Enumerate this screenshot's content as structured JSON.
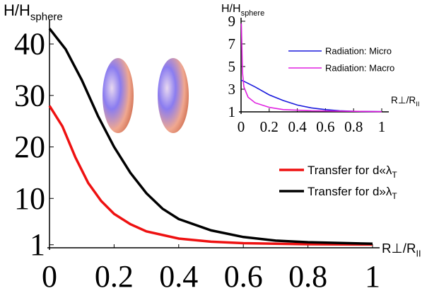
{
  "chart_data": [
    {
      "type": "line",
      "y_label": {
        "main": "H/H",
        "sub": "sphere"
      },
      "x_label": {
        "main": "R⊥/R",
        "sub": "II"
      },
      "xlim": [
        0,
        1
      ],
      "xticks": [
        0,
        0.2,
        0.4,
        0.6,
        0.8,
        1
      ],
      "ylim": [
        0,
        44
      ],
      "yticks": [
        1,
        10,
        20,
        30,
        40
      ],
      "grid": false,
      "legend": "right",
      "series": [
        {
          "name": "Transfer for d«λ",
          "name_sub": "T",
          "color": "#ee1111",
          "x": [
            0,
            0.04,
            0.08,
            0.12,
            0.16,
            0.2,
            0.25,
            0.3,
            0.4,
            0.5,
            0.6,
            0.8,
            1
          ],
          "values": [
            28,
            24,
            18,
            13,
            9.5,
            7,
            5,
            3.6,
            2.2,
            1.6,
            1.3,
            1.1,
            1.05
          ]
        },
        {
          "name": "Transfer for d»λ",
          "name_sub": "T",
          "color": "#000000",
          "x": [
            0,
            0.05,
            0.1,
            0.15,
            0.2,
            0.25,
            0.3,
            0.35,
            0.4,
            0.5,
            0.6,
            0.7,
            0.8,
            1
          ],
          "values": [
            43,
            39,
            33,
            26,
            20,
            15,
            11,
            8,
            6,
            3.8,
            2.5,
            1.8,
            1.5,
            1.2
          ]
        }
      ]
    },
    {
      "type": "line",
      "y_label": {
        "main": "H/H",
        "sub": "sphere"
      },
      "x_label": {
        "main": "R⊥/R",
        "sub": "II"
      },
      "xlim": [
        0,
        1
      ],
      "xticks": [
        0,
        0.2,
        0.4,
        0.6,
        0.8,
        1
      ],
      "ylim": [
        1,
        9
      ],
      "yticks": [
        1,
        3,
        5,
        7,
        9
      ],
      "grid": false,
      "legend": "top",
      "series": [
        {
          "name": "Radiation: Micro",
          "color": "#1a1adc",
          "x": [
            0,
            0.02,
            0.1,
            0.2,
            0.3,
            0.4,
            0.5,
            0.6,
            0.7,
            0.8,
            1
          ],
          "values": [
            3.8,
            3.7,
            3.2,
            2.5,
            2,
            1.6,
            1.35,
            1.2,
            1.1,
            1.05,
            1.02
          ]
        },
        {
          "name": "Radiation: Macro",
          "color": "#e020e0",
          "x": [
            0.002,
            0.01,
            0.02,
            0.05,
            0.1,
            0.2,
            0.3,
            0.5,
            1
          ],
          "values": [
            8.8,
            4.5,
            3.2,
            2.3,
            1.8,
            1.4,
            1.2,
            1.1,
            1.02
          ]
        }
      ]
    }
  ]
}
